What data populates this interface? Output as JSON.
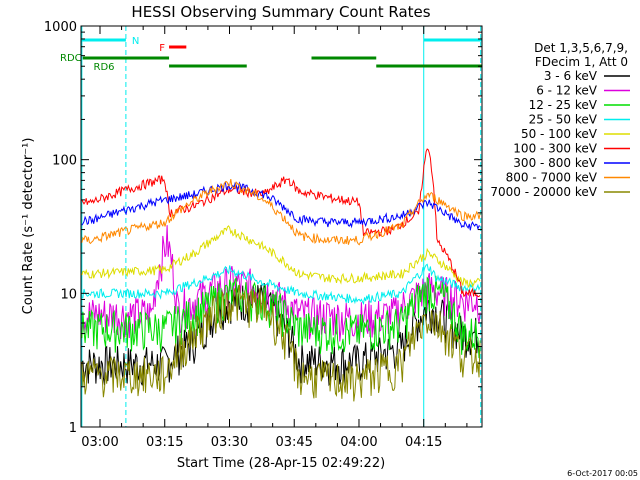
{
  "chart_data": {
    "type": "line",
    "title": "HESSI Observing Summary Count Rates",
    "xlabel": "Start Time (28-Apr-15 02:49:22)",
    "ylabel": "Count Rate (s⁻¹ detector⁻¹)",
    "yscale": "log",
    "ylim": [
      1,
      1000
    ],
    "xlim_minutes": [
      -4.4,
      88.5
    ],
    "x_ticks": [
      {
        "minute": 0,
        "label": "03:00"
      },
      {
        "minute": 15,
        "label": "03:15"
      },
      {
        "minute": 30,
        "label": "03:30"
      },
      {
        "minute": 45,
        "label": "03:45"
      },
      {
        "minute": 60,
        "label": "04:00"
      },
      {
        "minute": 75,
        "label": "04:15"
      }
    ],
    "y_ticks": [
      {
        "value": 1,
        "label": "1"
      },
      {
        "value": 10,
        "label": "10"
      },
      {
        "value": 100,
        "label": "100"
      },
      {
        "value": 1000,
        "label": "1000"
      }
    ],
    "legend_header": [
      "Det 1,3,5,6,7,9,",
      "FDecim 1, Att 0"
    ],
    "legend_position": "right",
    "series": [
      {
        "name": "3 - 6 keV",
        "color": "#000000",
        "x": [
          -2,
          15,
          22,
          30,
          38,
          46,
          53,
          60,
          70,
          76,
          84
        ],
        "values": [
          3,
          3,
          4.5,
          9,
          9,
          3.2,
          3.1,
          3.1,
          4,
          8,
          5
        ]
      },
      {
        "name": "6 - 12 keV",
        "color": "#dd00dd",
        "x": [
          -2,
          12,
          15.5,
          18,
          22,
          30,
          38,
          46,
          53,
          60,
          68,
          76,
          80,
          84
        ],
        "values": [
          7,
          7,
          25,
          7.5,
          9,
          12,
          11,
          7,
          6.8,
          6.5,
          7,
          11,
          10,
          9
        ]
      },
      {
        "name": "12 - 25 keV",
        "color": "#00dd00",
        "x": [
          -2,
          15,
          22,
          30,
          38,
          46,
          53,
          60,
          70,
          76,
          80,
          84
        ],
        "values": [
          5.5,
          5.5,
          7,
          10,
          9,
          5.5,
          5.3,
          5.2,
          6,
          11,
          9,
          5
        ]
      },
      {
        "name": "25 - 50 keV",
        "color": "#00eeee",
        "x": [
          -2,
          15,
          22,
          30,
          38,
          46,
          53,
          60,
          70,
          74,
          76,
          78,
          84
        ],
        "values": [
          10,
          10,
          12,
          15,
          12,
          10,
          9.5,
          9,
          10,
          14,
          16,
          13,
          11
        ]
      },
      {
        "name": "50 - 100 keV",
        "color": "#dddd00",
        "x": [
          -2,
          15,
          22,
          30,
          38,
          46,
          53,
          60,
          70,
          76,
          84
        ],
        "values": [
          14,
          15,
          20,
          30,
          22,
          14,
          13,
          13,
          14,
          20,
          12
        ]
      },
      {
        "name": "100 - 300 keV",
        "color": "#ff0000",
        "x": [
          -2,
          15,
          16,
          22,
          30,
          38,
          43.5,
          46,
          53,
          60,
          61,
          68,
          74,
          76,
          78,
          84
        ],
        "values": [
          48,
          72,
          40,
          45,
          60,
          55,
          72,
          58,
          52,
          48,
          28,
          30,
          40,
          130,
          25,
          10
        ]
      },
      {
        "name": "300 - 800 keV",
        "color": "#0000ff",
        "x": [
          -2,
          15,
          22,
          30,
          38,
          46,
          53,
          60,
          70,
          76,
          84
        ],
        "values": [
          35,
          50,
          55,
          65,
          55,
          36,
          34,
          34,
          38,
          48,
          32
        ]
      },
      {
        "name": "800 - 7000 keV",
        "color": "#ff8800",
        "x": [
          -2,
          15,
          22,
          30,
          38,
          46,
          53,
          60,
          70,
          76,
          84
        ],
        "values": [
          25,
          34,
          50,
          68,
          50,
          27,
          25,
          25,
          32,
          55,
          38
        ]
      },
      {
        "name": "7000 - 20000 keV",
        "color": "#888800",
        "x": [
          -2,
          15,
          22,
          30,
          38,
          46,
          53,
          60,
          70,
          76,
          84
        ],
        "values": [
          2.5,
          2.5,
          5,
          9,
          8,
          2.5,
          2.3,
          2.3,
          3,
          7,
          3.5
        ]
      }
    ],
    "status_bars": [
      {
        "label": "N",
        "color": "#00eeee",
        "segments": [
          [
            -4.4,
            6
          ],
          [
            75,
            88.5
          ]
        ]
      },
      {
        "label": "F",
        "color": "#ff0000",
        "segments": [
          [
            16,
            20
          ]
        ]
      },
      {
        "label": "RDC",
        "color": "#008800",
        "segments": [
          [
            -4,
            16
          ],
          [
            49,
            64
          ]
        ]
      },
      {
        "label": "RD6",
        "color": "#008800",
        "segments": [
          [
            16,
            34
          ],
          [
            64,
            88.5
          ]
        ]
      }
    ]
  },
  "footer_date": "6-Oct-2017 00:05",
  "colors": {
    "background": "#ffffff",
    "axes": "#000000"
  }
}
